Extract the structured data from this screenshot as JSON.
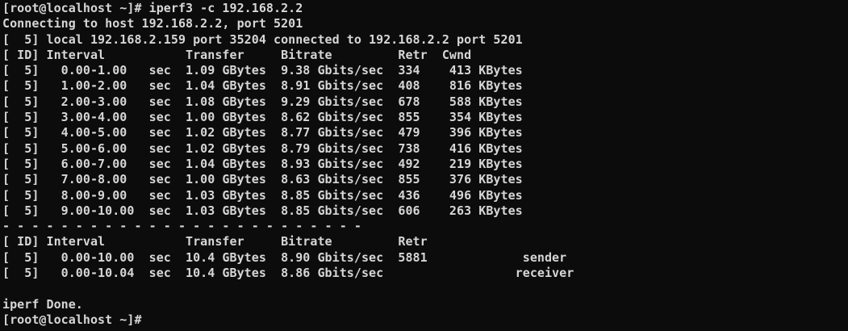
{
  "colors": {
    "background": "#0c0c0c",
    "foreground": "#d6d6d6"
  },
  "terminal": {
    "prompt": "[root@localhost ~]#",
    "command": "iperf3 -c 192.168.2.2",
    "final_prompt": "[root@localhost ~]#",
    "iperf": {
      "connecting_line": "Connecting to host 192.168.2.2, port 5201",
      "connection": {
        "stream_id": "5",
        "local_ip": "192.168.2.159",
        "local_port": "35204",
        "remote_ip": "192.168.2.2",
        "remote_port": "5201"
      },
      "columns": [
        "ID",
        "Interval",
        "Transfer",
        "Bitrate",
        "Retr",
        "Cwnd"
      ],
      "intervals": [
        {
          "id": "5",
          "interval": "0.00-1.00",
          "unit": "sec",
          "transfer": "1.09 GBytes",
          "bitrate": "9.38 Gbits/sec",
          "retr": "334",
          "cwnd": "413 KBytes"
        },
        {
          "id": "5",
          "interval": "1.00-2.00",
          "unit": "sec",
          "transfer": "1.04 GBytes",
          "bitrate": "8.91 Gbits/sec",
          "retr": "408",
          "cwnd": "816 KBytes"
        },
        {
          "id": "5",
          "interval": "2.00-3.00",
          "unit": "sec",
          "transfer": "1.08 GBytes",
          "bitrate": "9.29 Gbits/sec",
          "retr": "678",
          "cwnd": "588 KBytes"
        },
        {
          "id": "5",
          "interval": "3.00-4.00",
          "unit": "sec",
          "transfer": "1.00 GBytes",
          "bitrate": "8.62 Gbits/sec",
          "retr": "855",
          "cwnd": "354 KBytes"
        },
        {
          "id": "5",
          "interval": "4.00-5.00",
          "unit": "sec",
          "transfer": "1.02 GBytes",
          "bitrate": "8.77 Gbits/sec",
          "retr": "479",
          "cwnd": "396 KBytes"
        },
        {
          "id": "5",
          "interval": "5.00-6.00",
          "unit": "sec",
          "transfer": "1.02 GBytes",
          "bitrate": "8.79 Gbits/sec",
          "retr": "738",
          "cwnd": "416 KBytes"
        },
        {
          "id": "5",
          "interval": "6.00-7.00",
          "unit": "sec",
          "transfer": "1.04 GBytes",
          "bitrate": "8.93 Gbits/sec",
          "retr": "492",
          "cwnd": "219 KBytes"
        },
        {
          "id": "5",
          "interval": "7.00-8.00",
          "unit": "sec",
          "transfer": "1.00 GBytes",
          "bitrate": "8.63 Gbits/sec",
          "retr": "855",
          "cwnd": "376 KBytes"
        },
        {
          "id": "5",
          "interval": "8.00-9.00",
          "unit": "sec",
          "transfer": "1.03 GBytes",
          "bitrate": "8.85 Gbits/sec",
          "retr": "436",
          "cwnd": "496 KBytes"
        },
        {
          "id": "5",
          "interval": "9.00-10.00",
          "unit": "sec",
          "transfer": "1.03 GBytes",
          "bitrate": "8.85 Gbits/sec",
          "retr": "606",
          "cwnd": "263 KBytes"
        }
      ],
      "summary_columns": [
        "ID",
        "Interval",
        "Transfer",
        "Bitrate",
        "Retr"
      ],
      "summary": [
        {
          "id": "5",
          "interval": "0.00-10.00",
          "unit": "sec",
          "transfer": "10.4 GBytes",
          "bitrate": "8.90 Gbits/sec",
          "retr": "5881",
          "role": "sender"
        },
        {
          "id": "5",
          "interval": "0.00-10.04",
          "unit": "sec",
          "transfer": "10.4 GBytes",
          "bitrate": "8.86 Gbits/sec",
          "retr": "",
          "role": "receiver"
        }
      ],
      "done_line": "iperf Done."
    },
    "session": [
      "[root@localhost ~]# iperf3 -c 192.168.2.2",
      "Connecting to host 192.168.2.2, port 5201",
      "[  5] local 192.168.2.159 port 35204 connected to 192.168.2.2 port 5201",
      "[ ID] Interval           Transfer     Bitrate         Retr  Cwnd",
      "[  5]   0.00-1.00   sec  1.09 GBytes  9.38 Gbits/sec  334    413 KBytes",
      "[  5]   1.00-2.00   sec  1.04 GBytes  8.91 Gbits/sec  408    816 KBytes",
      "[  5]   2.00-3.00   sec  1.08 GBytes  9.29 Gbits/sec  678    588 KBytes",
      "[  5]   3.00-4.00   sec  1.00 GBytes  8.62 Gbits/sec  855    354 KBytes",
      "[  5]   4.00-5.00   sec  1.02 GBytes  8.77 Gbits/sec  479    396 KBytes",
      "[  5]   5.00-6.00   sec  1.02 GBytes  8.79 Gbits/sec  738    416 KBytes",
      "[  5]   6.00-7.00   sec  1.04 GBytes  8.93 Gbits/sec  492    219 KBytes",
      "[  5]   7.00-8.00   sec  1.00 GBytes  8.63 Gbits/sec  855    376 KBytes",
      "[  5]   8.00-9.00   sec  1.03 GBytes  8.85 Gbits/sec  436    496 KBytes",
      "[  5]   9.00-10.00  sec  1.03 GBytes  8.85 Gbits/sec  606    263 KBytes",
      "- - - - - - - - - - - - - - - - - - - - - - - - -",
      "[ ID] Interval           Transfer     Bitrate         Retr",
      "[  5]   0.00-10.00  sec  10.4 GBytes  8.90 Gbits/sec  5881             sender",
      "[  5]   0.00-10.04  sec  10.4 GBytes  8.86 Gbits/sec                  receiver",
      "",
      "iperf Done.",
      "[root@localhost ~]# "
    ]
  }
}
